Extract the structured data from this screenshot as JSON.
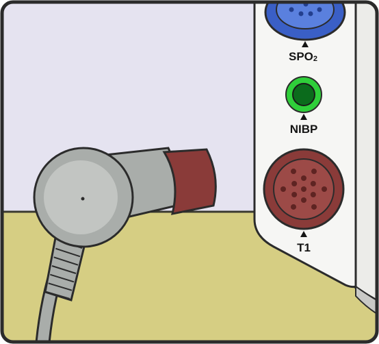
{
  "ports": {
    "spo2": {
      "label_main": "SPO",
      "label_sub": "2",
      "connector_color": "#3a5fc6"
    },
    "nibp": {
      "label": "NIBP",
      "connector_color": "#2fcf3a"
    },
    "t1": {
      "label": "T1",
      "connector_color": "#8a3b39"
    }
  },
  "probe": {
    "body_color": "#a9adaa",
    "tip_color": "#8a3b39"
  },
  "colors": {
    "wall": "#e5e3f0",
    "table": "#d6ce83",
    "monitor_panel": "#f6f6f4",
    "outline": "#2b2b2b"
  }
}
